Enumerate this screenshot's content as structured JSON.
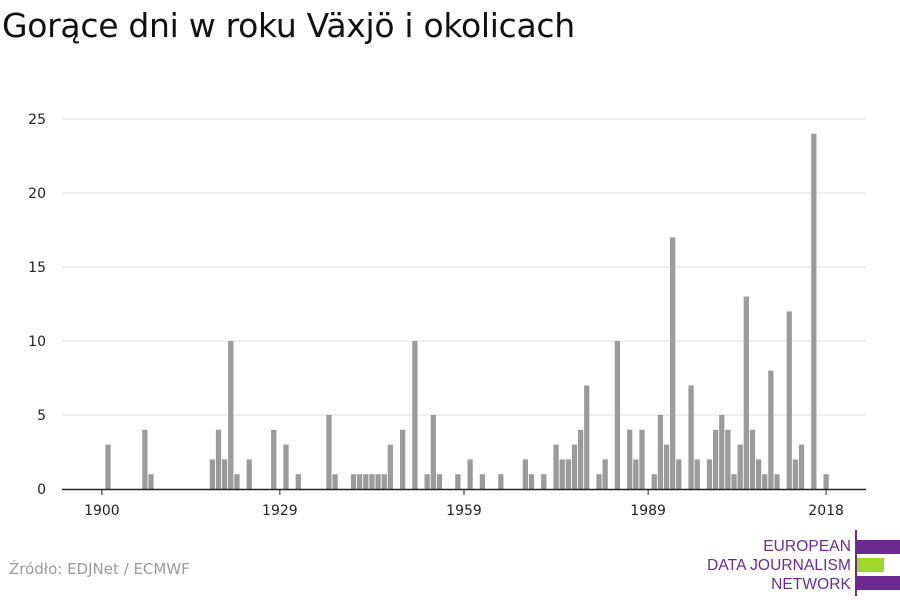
{
  "chart_data": {
    "type": "bar",
    "title": "Gorące dni w roku Växjö i okolicach",
    "x": [
      1901,
      1907,
      1908,
      1918,
      1919,
      1920,
      1921,
      1922,
      1924,
      1928,
      1930,
      1932,
      1937,
      1938,
      1941,
      1942,
      1943,
      1944,
      1945,
      1946,
      1947,
      1949,
      1951,
      1953,
      1954,
      1955,
      1958,
      1960,
      1962,
      1965,
      1969,
      1970,
      1972,
      1974,
      1975,
      1976,
      1977,
      1978,
      1979,
      1981,
      1982,
      1984,
      1986,
      1987,
      1988,
      1990,
      1991,
      1992,
      1993,
      1994,
      1996,
      1997,
      1999,
      2000,
      2001,
      2002,
      2003,
      2004,
      2005,
      2006,
      2007,
      2008,
      2009,
      2010,
      2012,
      2013,
      2014,
      2016,
      2018
    ],
    "values": [
      3,
      4,
      1,
      2,
      4,
      2,
      10,
      1,
      2,
      4,
      3,
      1,
      5,
      1,
      1,
      1,
      1,
      1,
      1,
      1,
      3,
      4,
      10,
      1,
      5,
      1,
      1,
      2,
      1,
      1,
      2,
      1,
      1,
      3,
      2,
      2,
      3,
      4,
      7,
      1,
      2,
      10,
      4,
      2,
      4,
      1,
      5,
      3,
      17,
      2,
      7,
      2,
      2,
      4,
      5,
      4,
      1,
      3,
      13,
      4,
      2,
      1,
      8,
      1,
      12,
      2,
      3,
      24,
      1
    ],
    "x_ticks": [
      "1900",
      "1929",
      "1959",
      "1989",
      "2018"
    ],
    "y_ticks": [
      "0",
      "5",
      "10",
      "15",
      "20",
      "25"
    ],
    "xlim": [
      1893.5,
      2024.5
    ],
    "ylim": [
      0,
      25
    ],
    "bar_color": "#9b9b9b",
    "grid": true
  },
  "source": "Źródło: EDJNet / ECMWF",
  "logo": {
    "lines": [
      "EUROPEAN",
      "DATA JOURNALISM",
      "NETWORK"
    ],
    "text_color": "#6a2a8f",
    "accent_color": "#9fd62b",
    "bar_color": "#6a2a8f"
  }
}
